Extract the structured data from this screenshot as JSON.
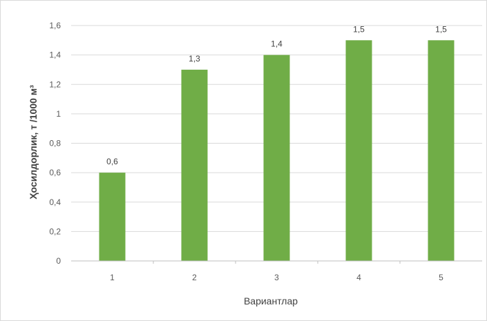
{
  "chart_data": {
    "type": "bar",
    "title": "",
    "xlabel": "Вариантлар",
    "ylabel": "Ҳосилдорлик, т /1000 м³",
    "categories": [
      "1",
      "2",
      "3",
      "4",
      "5"
    ],
    "values": [
      0.6,
      1.3,
      1.4,
      1.5,
      1.5
    ],
    "value_labels": [
      "0,6",
      "1,3",
      "1,4",
      "1,5",
      "1,5"
    ],
    "ylim": [
      0,
      1.6
    ],
    "yticks": [
      0,
      0.2,
      0.4,
      0.6,
      0.8,
      1,
      1.2,
      1.4,
      1.6
    ],
    "ytick_labels": [
      "0",
      "0,2",
      "0,4",
      "0,6",
      "0,8",
      "1",
      "1,2",
      "1,4",
      "1,6"
    ],
    "grid": true,
    "legend": "none",
    "bar_color": "#70ad47",
    "grid_color": "#d9d9d9"
  }
}
